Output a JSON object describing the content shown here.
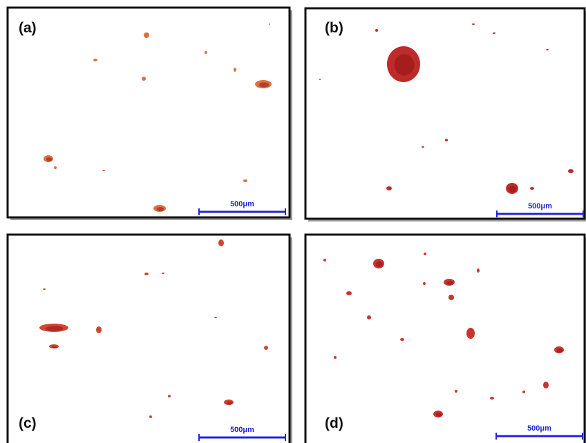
{
  "panels": [
    {
      "label": "(a)",
      "scale_bar": "500μm"
    },
    {
      "label": "(b)",
      "scale_bar": "500μm"
    },
    {
      "label": "(c)",
      "scale_bar": "500μm"
    },
    {
      "label": "(d)",
      "scale_bar": "500μm"
    }
  ]
}
